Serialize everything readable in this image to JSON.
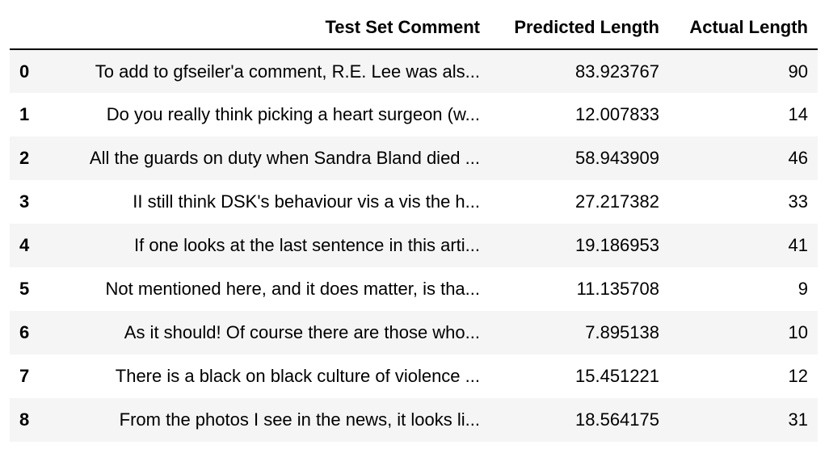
{
  "table": {
    "columns": [
      "",
      "Test Set Comment",
      "Predicted Length",
      "Actual Length"
    ],
    "rows": [
      {
        "index": "0",
        "comment": "To add to gfseiler'a comment, R.E. Lee was als...",
        "predicted": "83.923767",
        "actual": "90"
      },
      {
        "index": "1",
        "comment": "Do you really think picking a heart surgeon (w...",
        "predicted": "12.007833",
        "actual": "14"
      },
      {
        "index": "2",
        "comment": "All the guards on duty when Sandra Bland died ...",
        "predicted": "58.943909",
        "actual": "46"
      },
      {
        "index": "3",
        "comment": "II still think DSK's behaviour vis a vis the h...",
        "predicted": "27.217382",
        "actual": "33"
      },
      {
        "index": "4",
        "comment": "If one looks at the last sentence in this arti...",
        "predicted": "19.186953",
        "actual": "41"
      },
      {
        "index": "5",
        "comment": "Not mentioned here, and it does matter, is tha...",
        "predicted": "11.135708",
        "actual": "9"
      },
      {
        "index": "6",
        "comment": "As it should! Of course there are those who...",
        "predicted": "7.895138",
        "actual": "10"
      },
      {
        "index": "7",
        "comment": "There is a black on black culture of violence ...",
        "predicted": "15.451221",
        "actual": "12"
      },
      {
        "index": "8",
        "comment": "From the photos I see in the news, it looks li...",
        "predicted": "18.564175",
        "actual": "31"
      }
    ]
  }
}
